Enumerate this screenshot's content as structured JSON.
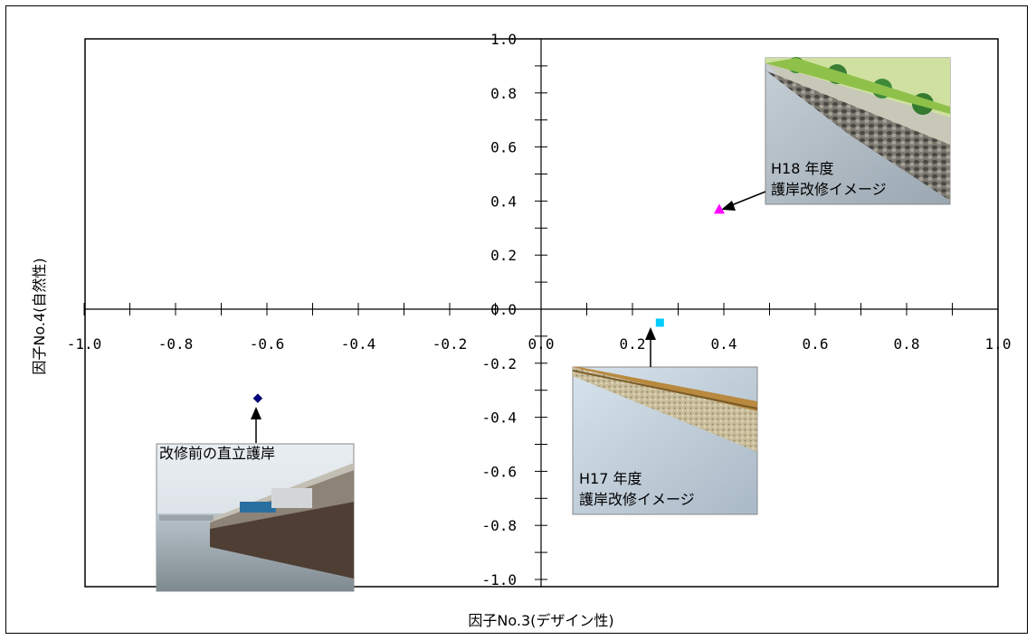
{
  "chart_data": {
    "type": "scatter",
    "xlabel": "因子No.3(デザイン性)",
    "ylabel": "因子No.4(自然性)",
    "xlim": [
      -1.0,
      1.0
    ],
    "ylim": [
      -1.0,
      1.0
    ],
    "x_ticks": [
      "-1.0",
      "-0.8",
      "-0.6",
      "-0.4",
      "-0.2",
      "0.0",
      "0.2",
      "0.4",
      "0.6",
      "0.8",
      "1.0"
    ],
    "y_ticks": [
      "1.0",
      "0.8",
      "0.6",
      "0.4",
      "0.2",
      "0.0",
      "-0.2",
      "-0.4",
      "-0.6",
      "-0.8",
      "-1.0"
    ],
    "grid": false,
    "points": [
      {
        "x": -0.62,
        "y": -0.33,
        "marker": "diamond",
        "color": "#000080"
      },
      {
        "x": 0.26,
        "y": -0.05,
        "marker": "square",
        "color": "#00CCFF"
      },
      {
        "x": 0.39,
        "y": 0.37,
        "marker": "triangle",
        "color": "#FF00FF"
      }
    ],
    "annotations": [
      {
        "text": "改修前の直立護岸",
        "image": "concrete-seawall-photo"
      },
      {
        "lines": [
          "H17 年度",
          "護岸改修イメージ"
        ],
        "image": "gravel-slope-revetment-illustration"
      },
      {
        "lines": [
          "H18 年度",
          "護岸改修イメージ"
        ],
        "image": "green-slope-revetment-illustration"
      }
    ]
  }
}
